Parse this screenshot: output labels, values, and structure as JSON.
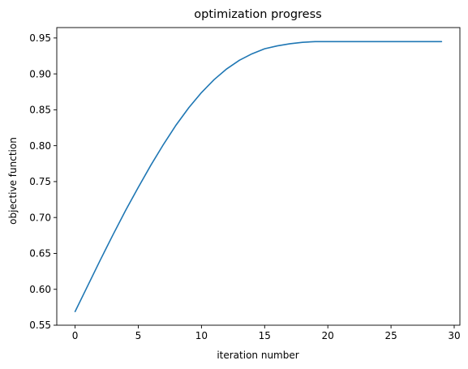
{
  "chart_data": {
    "type": "line",
    "title": "optimization progress",
    "xlabel": "iteration number",
    "ylabel": "objective function",
    "xlim": [
      -1.45,
      30.45
    ],
    "ylim": [
      0.55,
      0.9645
    ],
    "xticks": [
      0,
      5,
      10,
      15,
      20,
      25,
      30
    ],
    "yticks": [
      0.55,
      0.6,
      0.65,
      0.7,
      0.75,
      0.8,
      0.85,
      0.9,
      0.95
    ],
    "xtick_labels": [
      "0",
      "5",
      "10",
      "15",
      "20",
      "25",
      "30"
    ],
    "ytick_labels": [
      "0.55",
      "0.60",
      "0.65",
      "0.70",
      "0.75",
      "0.80",
      "0.85",
      "0.90",
      "0.95"
    ],
    "grid": false,
    "series": [
      {
        "color": "#1f77b4",
        "x": [
          0,
          1,
          2,
          3,
          4,
          5,
          6,
          7,
          8,
          9,
          10,
          11,
          12,
          13,
          14,
          15,
          16,
          17,
          18,
          19,
          20,
          21,
          22,
          23,
          24,
          25,
          26,
          27,
          28,
          29
        ],
        "y": [
          0.569,
          0.605,
          0.641,
          0.676,
          0.71,
          0.742,
          0.773,
          0.802,
          0.829,
          0.853,
          0.874,
          0.892,
          0.907,
          0.919,
          0.928,
          0.935,
          0.939,
          0.942,
          0.944,
          0.945,
          0.945,
          0.945,
          0.945,
          0.945,
          0.945,
          0.945,
          0.945,
          0.945,
          0.945,
          0.945
        ]
      }
    ]
  }
}
